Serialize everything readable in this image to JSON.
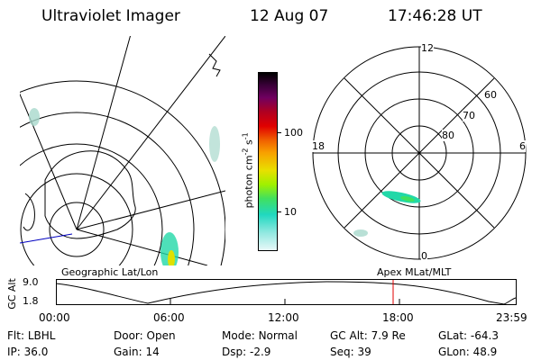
{
  "header": {
    "title": "Ultraviolet Imager",
    "date": "12 Aug 07",
    "time": "17:46:28 UT"
  },
  "colorbar": {
    "unit_prefix": "photon cm",
    "unit_exp1": "-2",
    "unit_mid": "s",
    "unit_exp2": "-1",
    "ticks": [
      "100",
      "10"
    ]
  },
  "polar_plot": {
    "mlt_labels": {
      "top": "12",
      "left": "18",
      "right": "6",
      "bottom": "0"
    },
    "lat_labels": [
      "60",
      "70",
      "80"
    ]
  },
  "panel_labels": {
    "left": "Geographic Lat/Lon",
    "right": "Apex MLat/MLT"
  },
  "altitude_strip": {
    "ylabel": "GC Alt",
    "ticks": [
      "9.0",
      "1.8"
    ],
    "time_ticks": [
      "00:00",
      "06:00",
      "12:00",
      "18:00",
      "23:59"
    ],
    "current_time": "17:46:28"
  },
  "footer": [
    {
      "label": "Flt:",
      "value": "LBHL"
    },
    {
      "label": "Door:",
      "value": "Open"
    },
    {
      "label": "Mode:",
      "value": "Normal"
    },
    {
      "label": "GC Alt:",
      "value": "7.9 Re"
    },
    {
      "label": "GLat:",
      "value": "-64.3"
    },
    {
      "label": "IP:",
      "value": "36.0"
    },
    {
      "label": "Gain:",
      "value": "14"
    },
    {
      "label": "Dsp:",
      "value": "-2.9"
    },
    {
      "label": "Seq:",
      "value": "39"
    },
    {
      "label": "GLon:",
      "value": "48.9"
    }
  ],
  "colors": {
    "aurora_dim": "#a8d8cc",
    "aurora_mid": "#22d8a8",
    "aurora_bright": "#e0e000",
    "time_marker": "#e00000",
    "trace": "#0000c0"
  }
}
